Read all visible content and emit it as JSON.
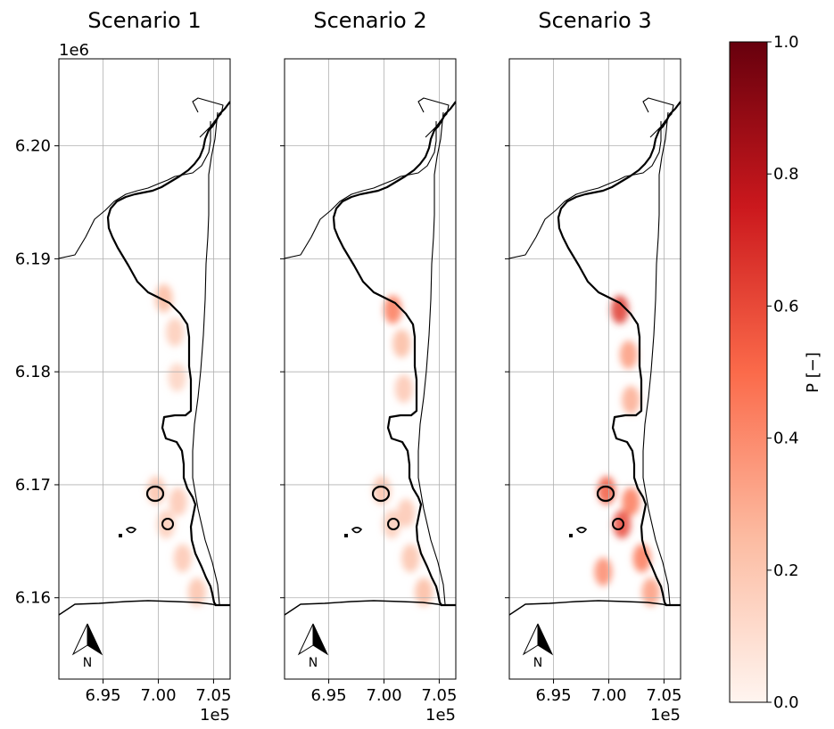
{
  "figure": {
    "x_multiplier": "1e5",
    "y_multiplier": "1e6",
    "north_arrow_label": "N"
  },
  "chart_data": [
    {
      "type": "heatmap",
      "title": "Scenario 1",
      "xlabel": "",
      "ylabel": "",
      "xlim": [
        6.91,
        7.065
      ],
      "ylim": [
        6.1528,
        6.2077
      ],
      "x_ticks": [
        6.95,
        7.0,
        7.05
      ],
      "x_tick_labels": [
        "6.95",
        "7.00",
        "7.05"
      ],
      "y_ticks": [
        6.16,
        6.17,
        6.18,
        6.19,
        6.2
      ],
      "y_tick_labels": [
        "6.16",
        "6.17",
        "6.18",
        "6.19",
        "6.20"
      ],
      "grid": true,
      "hotspots": [
        {
          "x": 7.005,
          "y": 6.1865,
          "p": 0.25
        },
        {
          "x": 7.015,
          "y": 6.1835,
          "p": 0.18
        },
        {
          "x": 7.017,
          "y": 6.1795,
          "p": 0.15
        },
        {
          "x": 6.998,
          "y": 6.1695,
          "p": 0.22
        },
        {
          "x": 7.018,
          "y": 6.1685,
          "p": 0.2
        },
        {
          "x": 7.007,
          "y": 6.1665,
          "p": 0.18
        },
        {
          "x": 7.022,
          "y": 6.1635,
          "p": 0.2
        },
        {
          "x": 7.035,
          "y": 6.1605,
          "p": 0.22
        }
      ]
    },
    {
      "type": "heatmap",
      "title": "Scenario 2",
      "xlabel": "",
      "ylabel": "",
      "xlim": [
        6.91,
        7.065
      ],
      "ylim": [
        6.1528,
        6.2077
      ],
      "x_ticks": [
        6.95,
        7.0,
        7.05
      ],
      "x_tick_labels": [
        "6.95",
        "7.00",
        "7.05"
      ],
      "y_ticks": [
        6.16,
        6.17,
        6.18,
        6.19,
        6.2
      ],
      "y_tick_labels": [
        "6.16",
        "6.17",
        "6.18",
        "6.19",
        "6.20"
      ],
      "grid": true,
      "hotspots": [
        {
          "x": 7.008,
          "y": 6.1855,
          "p": 0.45
        },
        {
          "x": 7.016,
          "y": 6.1825,
          "p": 0.25
        },
        {
          "x": 7.018,
          "y": 6.1785,
          "p": 0.2
        },
        {
          "x": 6.998,
          "y": 6.1695,
          "p": 0.22
        },
        {
          "x": 7.02,
          "y": 6.1675,
          "p": 0.2
        },
        {
          "x": 7.007,
          "y": 6.1665,
          "p": 0.18
        },
        {
          "x": 7.024,
          "y": 6.1635,
          "p": 0.22
        },
        {
          "x": 7.036,
          "y": 6.1605,
          "p": 0.25
        }
      ]
    },
    {
      "type": "heatmap",
      "title": "Scenario 3",
      "xlabel": "",
      "ylabel": "",
      "xlim": [
        6.91,
        7.065
      ],
      "ylim": [
        6.1528,
        6.2077
      ],
      "x_ticks": [
        6.95,
        7.0,
        7.05
      ],
      "x_tick_labels": [
        "6.95",
        "7.00",
        "7.05"
      ],
      "y_ticks": [
        6.16,
        6.17,
        6.18,
        6.19,
        6.2
      ],
      "y_tick_labels": [
        "6.16",
        "6.17",
        "6.18",
        "6.19",
        "6.20"
      ],
      "grid": true,
      "hotspots": [
        {
          "x": 7.01,
          "y": 6.1855,
          "p": 0.65
        },
        {
          "x": 7.018,
          "y": 6.1815,
          "p": 0.35
        },
        {
          "x": 7.02,
          "y": 6.1775,
          "p": 0.3
        },
        {
          "x": 6.998,
          "y": 6.1695,
          "p": 0.55
        },
        {
          "x": 7.02,
          "y": 6.1685,
          "p": 0.45
        },
        {
          "x": 7.012,
          "y": 6.1665,
          "p": 0.6
        },
        {
          "x": 7.03,
          "y": 6.1635,
          "p": 0.45
        },
        {
          "x": 6.995,
          "y": 6.1623,
          "p": 0.4
        },
        {
          "x": 7.038,
          "y": 6.1605,
          "p": 0.35
        }
      ]
    }
  ],
  "colorbar": {
    "label": "P [−]",
    "range": [
      0.0,
      1.0
    ],
    "ticks": [
      0.0,
      0.2,
      0.4,
      0.6,
      0.8,
      1.0
    ],
    "tick_labels": [
      "0.0",
      "0.2",
      "0.4",
      "0.6",
      "0.8",
      "1.0"
    ],
    "colors": [
      "#fff5f0",
      "#fcbba1",
      "#fb6a4a",
      "#cb181d",
      "#67000d"
    ]
  }
}
